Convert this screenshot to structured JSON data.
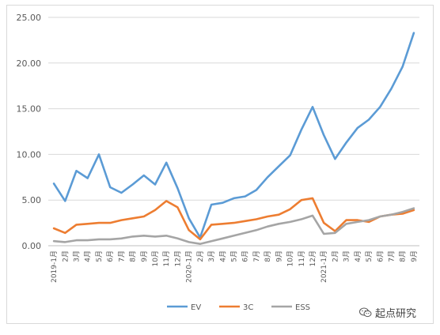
{
  "chart_data": {
    "type": "line",
    "title": "",
    "xlabel": "",
    "ylabel": "",
    "ylim": [
      0,
      25
    ],
    "y_ticks": [
      "0.00",
      "5.00",
      "10.00",
      "15.00",
      "20.00",
      "25.00"
    ],
    "grid": "horizontal",
    "legend_placement": "bottom",
    "categories": [
      "2019-1月",
      "2月",
      "3月",
      "4月",
      "5月",
      "6月",
      "7月",
      "8月",
      "9月",
      "10月",
      "11月",
      "12月",
      "2020-1月",
      "2月",
      "3月",
      "4月",
      "5月",
      "6月",
      "7月",
      "8月",
      "9月",
      "10月",
      "11月",
      "12月",
      "2021-1月",
      "2月",
      "3月",
      "4月",
      "5月",
      "6月",
      "7月",
      "8月",
      "9月"
    ],
    "series": [
      {
        "name": "EV",
        "color": "#5b9bd5",
        "values": [
          6.8,
          4.9,
          8.2,
          7.4,
          10.0,
          6.4,
          5.8,
          6.7,
          7.7,
          6.7,
          9.1,
          6.3,
          3.0,
          0.9,
          4.5,
          4.7,
          5.2,
          5.4,
          6.1,
          7.5,
          8.7,
          9.9,
          12.7,
          15.2,
          12.1,
          9.5,
          11.3,
          12.9,
          13.8,
          15.2,
          17.2,
          19.6,
          23.3
        ]
      },
      {
        "name": "3C",
        "color": "#ed7d31",
        "values": [
          1.9,
          1.4,
          2.3,
          2.4,
          2.5,
          2.5,
          2.8,
          3.0,
          3.2,
          3.9,
          4.9,
          4.2,
          1.7,
          0.7,
          2.3,
          2.4,
          2.5,
          2.7,
          2.9,
          3.2,
          3.4,
          4.0,
          5.0,
          5.2,
          2.5,
          1.6,
          2.8,
          2.8,
          2.6,
          3.2,
          3.4,
          3.5,
          3.9
        ]
      },
      {
        "name": "ESS",
        "color": "#a5a5a5",
        "values": [
          0.5,
          0.4,
          0.6,
          0.6,
          0.7,
          0.7,
          0.8,
          1.0,
          1.1,
          1.0,
          1.1,
          0.8,
          0.4,
          0.2,
          0.5,
          0.8,
          1.1,
          1.4,
          1.7,
          2.1,
          2.4,
          2.6,
          2.9,
          3.3,
          1.3,
          1.4,
          2.4,
          2.6,
          2.8,
          3.2,
          3.4,
          3.7,
          4.1
        ]
      }
    ]
  },
  "watermark": {
    "text": "起点研究",
    "icon": "wechat-icon"
  }
}
